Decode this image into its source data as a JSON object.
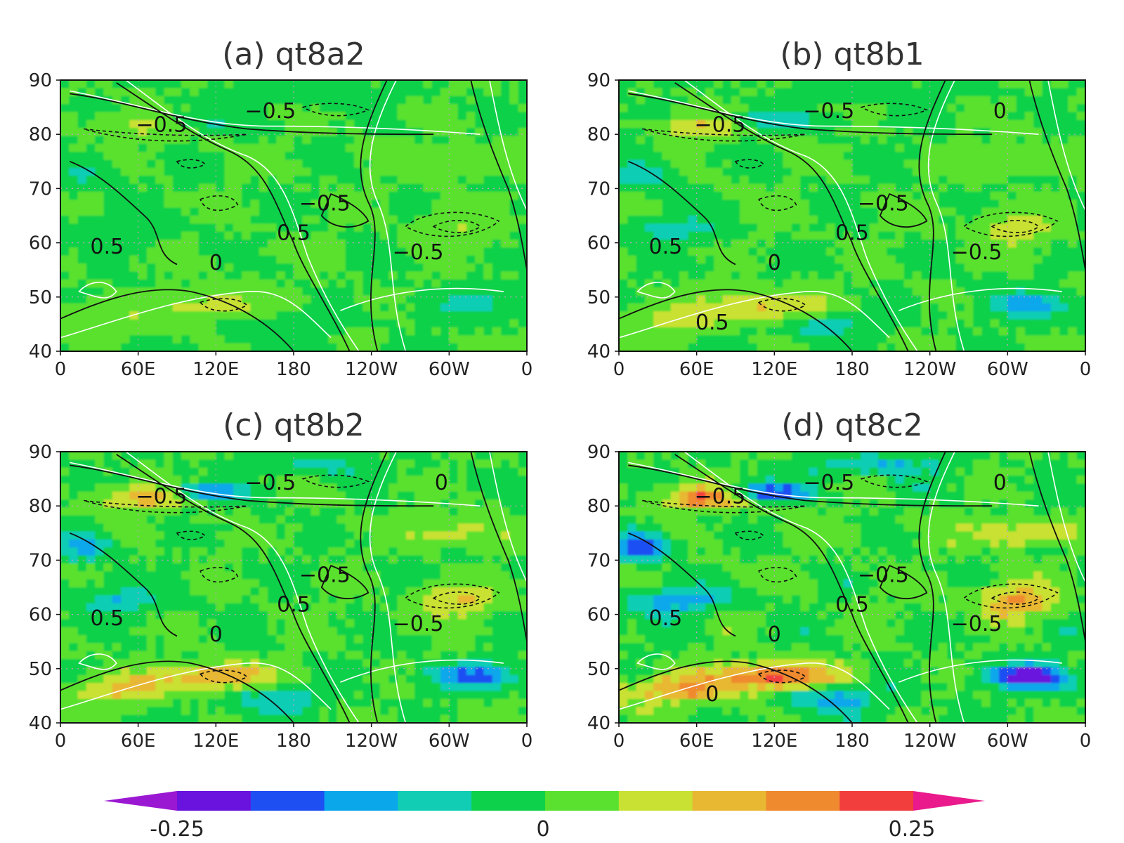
{
  "colors": {
    "scale": [
      "#9B18D2",
      "#6A12DE",
      "#1E4FF3",
      "#0AA7EB",
      "#10CDB4",
      "#0DD14A",
      "#5AE12F",
      "#C8E133",
      "#E8B833",
      "#EF8A2E",
      "#F23F3E",
      "#EA1A8C"
    ],
    "contour_black": "#111111",
    "contour_white": "#ffffff",
    "grid": "#c8a0c8"
  },
  "panels": [
    {
      "title": "(a) qt8a2",
      "intensity": 0.35,
      "seed": 11,
      "contour_labels": [
        "-0.5",
        "-0.5",
        "-0.5",
        "0.5",
        "0",
        "0.5",
        "-0.5"
      ]
    },
    {
      "title": "(b) qt8b1",
      "intensity": 0.6,
      "seed": 23,
      "contour_labels": [
        "-0.5",
        "-0.5",
        "-0.5",
        "0.5",
        "0",
        "0.5",
        "-0.5",
        "0",
        "0.5"
      ]
    },
    {
      "title": "(c) qt8b2",
      "intensity": 0.8,
      "seed": 37,
      "contour_labels": [
        "-0.5",
        "-0.5",
        "-0.5",
        "0.5",
        "0",
        "0.5",
        "-0.5",
        "0"
      ]
    },
    {
      "title": "(d) qt8c2",
      "intensity": 1.15,
      "seed": 53,
      "contour_labels": [
        "-0.5",
        "-0.5",
        "-0.5",
        "0.5",
        "0",
        "0.5",
        "-0.5",
        "0",
        "0"
      ]
    }
  ],
  "axes": {
    "x_ticks": [
      "0",
      "60E",
      "120E",
      "180",
      "120W",
      "60W",
      "0"
    ],
    "y_ticks": [
      "40",
      "50",
      "60",
      "70",
      "80",
      "90"
    ],
    "y_range": [
      40,
      90
    ],
    "x_range": [
      0,
      360
    ]
  },
  "colorbar": {
    "labels": [
      "-0.25",
      "0",
      "0.25"
    ],
    "range": [
      -0.3,
      0.3
    ]
  }
}
